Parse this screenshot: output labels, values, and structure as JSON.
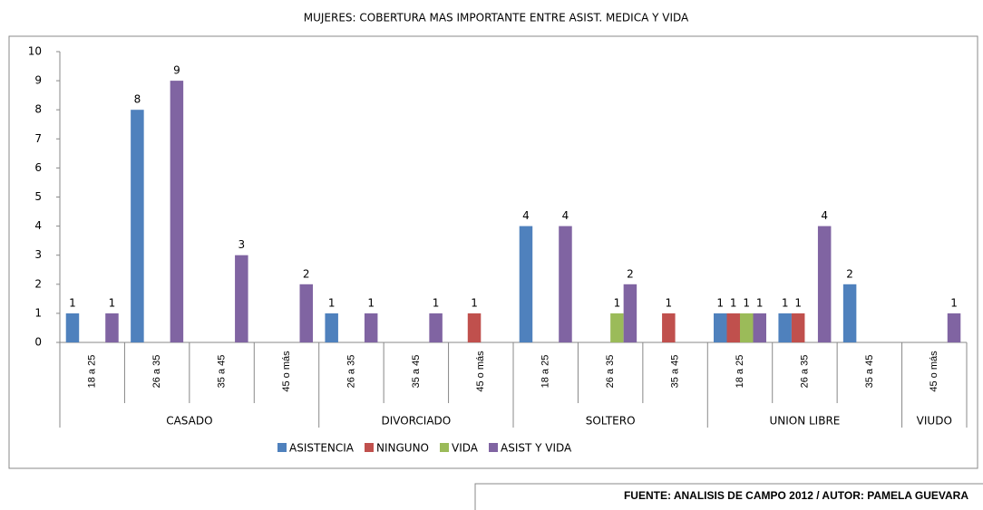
{
  "chart_data": {
    "type": "bar",
    "title": "MUJERES: COBERTURA MAS IMPORTANTE ENTRE ASIST. MEDICA Y VIDA",
    "groups": [
      {
        "name": "CASADO",
        "categories": [
          "18 a 25",
          "26 a 35",
          "35 a 45",
          "45 o más"
        ]
      },
      {
        "name": "DIVORCIADO",
        "categories": [
          "26 a 35",
          "35 a 45",
          "45 o más"
        ]
      },
      {
        "name": "SOLTERO",
        "categories": [
          "18 a 25",
          "26 a 35",
          "35 a 45"
        ]
      },
      {
        "name": "UNION LIBRE",
        "categories": [
          "18 a 25",
          "26 a 35",
          "35 a 45"
        ]
      },
      {
        "name": "VIUDO",
        "categories": [
          "45 o más"
        ]
      }
    ],
    "series": [
      {
        "name": "ASISTENCIA",
        "color": "#4f81bd",
        "values": [
          1,
          8,
          null,
          null,
          1,
          null,
          null,
          4,
          null,
          null,
          1,
          1,
          2,
          null
        ]
      },
      {
        "name": "NINGUNO",
        "color": "#c0504d",
        "values": [
          null,
          null,
          null,
          null,
          null,
          null,
          1,
          null,
          null,
          1,
          1,
          1,
          null,
          null
        ]
      },
      {
        "name": "VIDA",
        "color": "#9bbb59",
        "values": [
          null,
          null,
          null,
          null,
          null,
          null,
          null,
          null,
          1,
          null,
          1,
          null,
          null,
          null
        ]
      },
      {
        "name": "ASIST Y VIDA",
        "color": "#8064a2",
        "values": [
          1,
          9,
          3,
          2,
          1,
          1,
          null,
          4,
          2,
          null,
          1,
          4,
          null,
          1
        ]
      }
    ],
    "ylim": [
      0,
      10
    ],
    "yticks": [
      0,
      1,
      2,
      3,
      4,
      5,
      6,
      7,
      8,
      9,
      10
    ],
    "legend": "bottom",
    "source": "FUENTE: ANALISIS DE CAMPO  2012  / AUTOR: PAMELA GUEVARA"
  }
}
